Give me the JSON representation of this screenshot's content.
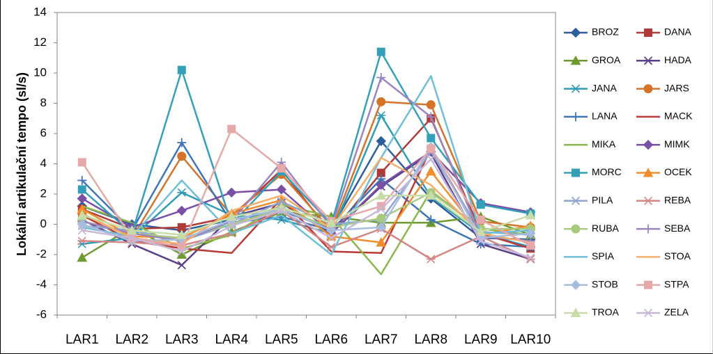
{
  "chart_data": {
    "type": "line",
    "title": "",
    "xlabel": "",
    "ylabel": "Lokální artikulační tempo (sl/s)",
    "categories": [
      "LAR1",
      "LAR2",
      "LAR3",
      "LAR4",
      "LAR5",
      "LAR6",
      "LAR7",
      "LAR8",
      "LAR9",
      "LAR10"
    ],
    "ylim": [
      -6,
      14
    ],
    "yticks": [
      -6,
      -4,
      -2,
      0,
      2,
      4,
      6,
      8,
      10,
      12,
      14
    ],
    "grid": false,
    "legend": "right",
    "series": [
      {
        "name": "BROZ",
        "color": "#2e5d9b",
        "marker": "diamond",
        "values": [
          1.2,
          0.0,
          -0.4,
          0.3,
          0.9,
          -0.3,
          5.5,
          1.7,
          -0.9,
          -1.0
        ]
      },
      {
        "name": "DANA",
        "color": "#b03a37",
        "marker": "square",
        "values": [
          1.0,
          -0.3,
          -0.2,
          0.5,
          3.6,
          -0.6,
          3.4,
          7.0,
          -0.5,
          -1.6
        ]
      },
      {
        "name": "GROA",
        "color": "#6f9a2f",
        "marker": "triangle",
        "values": [
          -2.2,
          -0.2,
          -2.0,
          -0.5,
          0.8,
          0.5,
          0.1,
          0.1,
          0.5,
          -0.7
        ]
      },
      {
        "name": "HADA",
        "color": "#5b3f8a",
        "marker": "x",
        "values": [
          0.3,
          -1.3,
          -2.7,
          0.5,
          1.4,
          -0.6,
          2.5,
          4.7,
          -1.3,
          -2.3
        ]
      },
      {
        "name": "JANA",
        "color": "#2f9bb5",
        "marker": "asterisk",
        "values": [
          -1.3,
          -0.9,
          2.1,
          0.6,
          0.3,
          -0.6,
          7.2,
          1.8,
          -0.6,
          -1.5
        ]
      },
      {
        "name": "JARS",
        "color": "#d3742a",
        "marker": "circle",
        "values": [
          0.7,
          -0.9,
          4.5,
          0.6,
          3.3,
          -0.4,
          8.1,
          7.9,
          0.2,
          -0.2
        ]
      },
      {
        "name": "LANA",
        "color": "#3e74b8",
        "marker": "plus",
        "values": [
          2.9,
          -0.4,
          5.4,
          0.1,
          0.5,
          -0.4,
          3.0,
          0.3,
          -1.3,
          -1.5
        ]
      },
      {
        "name": "MACK",
        "color": "#b93935",
        "marker": "none",
        "values": [
          0.6,
          -1.1,
          -1.6,
          -1.9,
          1.7,
          -1.8,
          -1.9,
          5.0,
          -0.6,
          -1.6
        ]
      },
      {
        "name": "MIKA",
        "color": "#8ab84d",
        "marker": "none",
        "values": [
          1.2,
          0.1,
          -1.6,
          -0.7,
          1.3,
          0.5,
          -3.3,
          2.2,
          -0.3,
          -0.7
        ]
      },
      {
        "name": "MIMK",
        "color": "#7a4fa6",
        "marker": "diamond",
        "values": [
          1.7,
          -0.2,
          0.9,
          2.1,
          2.3,
          -0.6,
          2.6,
          4.8,
          1.4,
          0.8
        ]
      },
      {
        "name": "MORC",
        "color": "#34a0b8",
        "marker": "square",
        "values": [
          2.3,
          -0.6,
          10.2,
          0.0,
          3.5,
          0.0,
          11.4,
          5.7,
          1.3,
          0.7
        ]
      },
      {
        "name": "OCEK",
        "color": "#f08d2c",
        "marker": "triangle",
        "values": [
          1.0,
          -0.8,
          -0.9,
          0.7,
          1.6,
          -0.8,
          -1.2,
          3.5,
          -0.7,
          -0.1
        ]
      },
      {
        "name": "PILA",
        "color": "#8ea6cf",
        "marker": "x",
        "values": [
          -0.1,
          -0.4,
          -1.1,
          0.0,
          1.5,
          0.0,
          0.3,
          4.8,
          -0.5,
          -0.7
        ]
      },
      {
        "name": "REBA",
        "color": "#d48585",
        "marker": "asterisk",
        "values": [
          -1.1,
          -1.2,
          -1.4,
          -0.6,
          0.9,
          -1.5,
          -0.3,
          -2.3,
          -0.8,
          -2.3
        ]
      },
      {
        "name": "RUBA",
        "color": "#a9c97e",
        "marker": "circle",
        "values": [
          0.2,
          -0.6,
          -0.9,
          0.0,
          1.0,
          -0.2,
          0.4,
          2.1,
          -0.3,
          -0.3
        ]
      },
      {
        "name": "SEBA",
        "color": "#9a86bd",
        "marker": "plus",
        "values": [
          0.2,
          -0.6,
          -1.1,
          0.2,
          4.1,
          -0.2,
          9.7,
          7.1,
          -0.8,
          -1.1
        ]
      },
      {
        "name": "SPIA",
        "color": "#6fbfd7",
        "marker": "none",
        "values": [
          -0.2,
          -0.8,
          2.9,
          -0.6,
          0.6,
          -2.0,
          4.4,
          9.8,
          -0.6,
          -0.4
        ]
      },
      {
        "name": "STOA",
        "color": "#f5ae6a",
        "marker": "none",
        "values": [
          0.7,
          -0.9,
          -1.3,
          0.9,
          1.9,
          -0.3,
          4.4,
          2.6,
          -0.6,
          -1.2
        ]
      },
      {
        "name": "STOB",
        "color": "#a7bde0",
        "marker": "diamond",
        "values": [
          0.0,
          -1.1,
          -1.0,
          0.3,
          1.0,
          -0.4,
          -0.2,
          5.1,
          -0.9,
          -0.6
        ]
      },
      {
        "name": "STPA",
        "color": "#e5a9a9",
        "marker": "square",
        "values": [
          4.1,
          -0.9,
          -1.5,
          6.3,
          3.7,
          0.2,
          1.2,
          5.0,
          0.3,
          -1.4
        ]
      },
      {
        "name": "TROA",
        "color": "#c7dca7",
        "marker": "triangle",
        "values": [
          0.6,
          -0.4,
          -0.7,
          0.5,
          1.1,
          0.1,
          1.9,
          1.9,
          -0.5,
          0.6
        ]
      },
      {
        "name": "ZELA",
        "color": "#c7b8da",
        "marker": "x",
        "values": [
          -0.4,
          -0.9,
          -1.8,
          -0.1,
          0.9,
          -0.9,
          1.0,
          4.3,
          -1.1,
          -2.2
        ]
      }
    ]
  }
}
